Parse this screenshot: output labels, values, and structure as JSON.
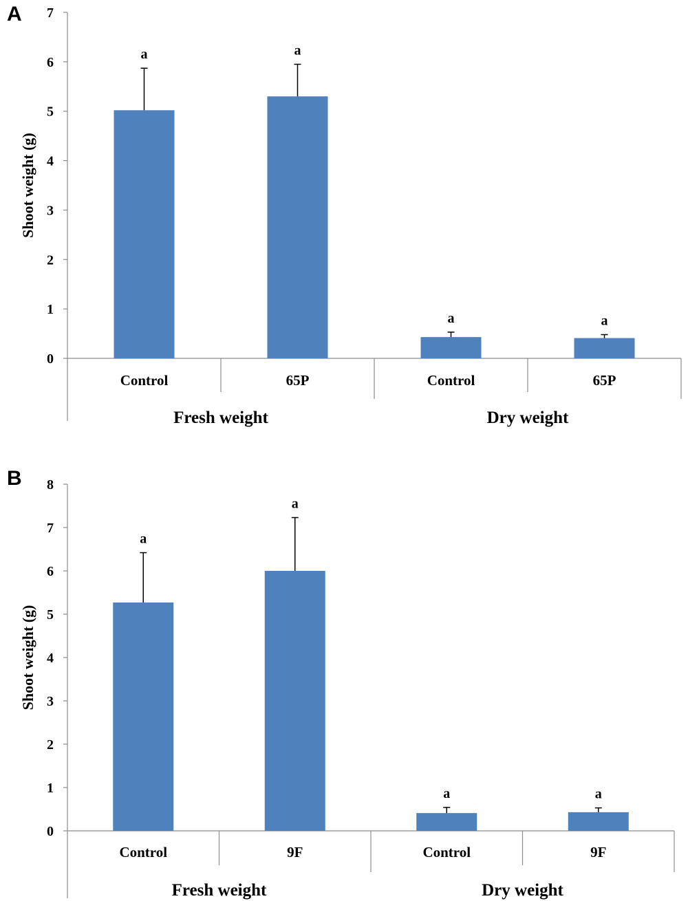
{
  "chart_data": [
    {
      "panel": "A",
      "type": "bar",
      "ylabel": "Shoot weight (g)",
      "ylim": [
        0,
        7
      ],
      "yticks": [
        "0",
        "1",
        "2",
        "3",
        "4",
        "5",
        "6",
        "7"
      ],
      "categories": [
        "Control",
        "65P",
        "Control",
        "65P"
      ],
      "groups": [
        "Fresh weight",
        "Dry weight"
      ],
      "values": [
        5.02,
        5.3,
        0.43,
        0.41
      ],
      "errors": [
        0.85,
        0.65,
        0.1,
        0.07
      ],
      "significance": [
        "a",
        "a",
        "a",
        "a"
      ],
      "bar_color": "#4f81bd"
    },
    {
      "panel": "B",
      "type": "bar",
      "ylabel": "Shoot weight (g)",
      "ylim": [
        0,
        8
      ],
      "yticks": [
        "0",
        "1",
        "2",
        "3",
        "4",
        "5",
        "6",
        "7",
        "8"
      ],
      "categories": [
        "Control",
        "9F",
        "Control",
        "9F"
      ],
      "groups": [
        "Fresh weight",
        "Dry weight"
      ],
      "values": [
        5.27,
        6.0,
        0.41,
        0.43
      ],
      "errors": [
        1.15,
        1.23,
        0.13,
        0.1
      ],
      "significance": [
        "a",
        "a",
        "a",
        "a"
      ],
      "bar_color": "#4f81bd"
    }
  ]
}
